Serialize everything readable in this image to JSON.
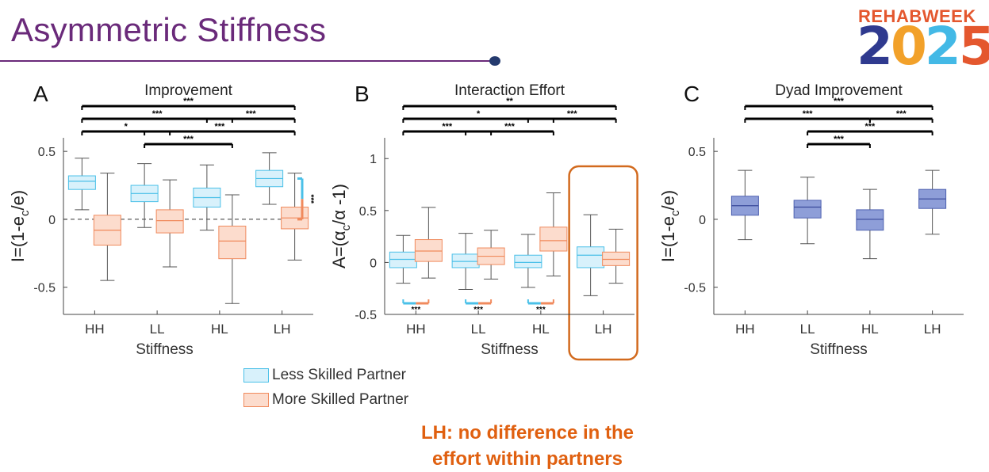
{
  "slide": {
    "title": "Asymmetric Stiffness"
  },
  "logo": {
    "top_text": "REHABWEEK",
    "year_digits": [
      "2",
      "0",
      "2",
      "5"
    ]
  },
  "legend": {
    "items": [
      {
        "label": "Less Skilled Partner",
        "color": "#4ac0e8",
        "fill": "#d8f1fb"
      },
      {
        "label": "More Skilled Partner",
        "color": "#f08a5d",
        "fill": "#fcdccd"
      }
    ]
  },
  "callout": {
    "line1": "LH: no difference in the",
    "line2": "effort within partners"
  },
  "chart_data": [
    {
      "type": "box",
      "panel_letter": "A",
      "title": "Improvement",
      "xlabel": "Stiffness",
      "ylabel": "I=(1-e_c/e)",
      "categories": [
        "HH",
        "LL",
        "HL",
        "LH"
      ],
      "ylim": [
        -0.7,
        0.6
      ],
      "yticks": [
        0.5,
        0,
        -0.5
      ],
      "ytick_labels": [
        "0.5",
        "0",
        "-0.5"
      ],
      "zero_line": true,
      "series": [
        {
          "name": "Less Skilled Partner",
          "boxes": [
            {
              "min": 0.07,
              "q1": 0.22,
              "median": 0.28,
              "q3": 0.32,
              "max": 0.45
            },
            {
              "min": -0.06,
              "q1": 0.13,
              "median": 0.19,
              "q3": 0.25,
              "max": 0.41
            },
            {
              "min": -0.08,
              "q1": 0.09,
              "median": 0.16,
              "q3": 0.23,
              "max": 0.4
            },
            {
              "min": 0.11,
              "q1": 0.24,
              "median": 0.3,
              "q3": 0.36,
              "max": 0.49
            }
          ]
        },
        {
          "name": "More Skilled Partner",
          "boxes": [
            {
              "min": -0.45,
              "q1": -0.19,
              "median": -0.08,
              "q3": 0.03,
              "max": 0.34
            },
            {
              "min": -0.35,
              "q1": -0.1,
              "median": -0.01,
              "q3": 0.07,
              "max": 0.29
            },
            {
              "min": -0.62,
              "q1": -0.29,
              "median": -0.16,
              "q3": -0.05,
              "max": 0.18
            },
            {
              "min": -0.3,
              "q1": -0.07,
              "median": 0.01,
              "q3": 0.09,
              "max": 0.34
            }
          ]
        }
      ],
      "significance": [
        {
          "from": 0,
          "to": 3,
          "label": "***",
          "level": 1
        },
        {
          "from": 0,
          "to": 2,
          "label": "***",
          "level": 2
        },
        {
          "from": 2,
          "to": 3,
          "label": "***",
          "level": 2
        },
        {
          "from": 0,
          "to": 1,
          "label": "*",
          "level": 3
        },
        {
          "from": 1,
          "to": 2,
          "label": "***",
          "level": 4
        },
        {
          "from": 1,
          "to": 3,
          "label": "***",
          "level": 3
        }
      ],
      "side_bracket": {
        "label": "***"
      }
    },
    {
      "type": "box",
      "panel_letter": "B",
      "title": "Interaction Effort",
      "xlabel": "Stiffness",
      "ylabel": "A=(α_c/α -1)",
      "categories": [
        "HH",
        "LL",
        "HL",
        "LH"
      ],
      "ylim": [
        -0.5,
        1.2
      ],
      "yticks": [
        1,
        0.5,
        0,
        -0.5
      ],
      "ytick_labels": [
        "1",
        "0.5",
        "0",
        "-0.5"
      ],
      "highlight_category": 3,
      "series": [
        {
          "name": "Less Skilled Partner",
          "boxes": [
            {
              "min": -0.2,
              "q1": -0.05,
              "median": 0.03,
              "q3": 0.1,
              "max": 0.26
            },
            {
              "min": -0.26,
              "q1": -0.05,
              "median": 0.01,
              "q3": 0.08,
              "max": 0.28
            },
            {
              "min": -0.24,
              "q1": -0.05,
              "median": 0.0,
              "q3": 0.07,
              "max": 0.27
            },
            {
              "min": -0.32,
              "q1": -0.05,
              "median": 0.07,
              "q3": 0.15,
              "max": 0.46
            }
          ]
        },
        {
          "name": "More Skilled Partner",
          "boxes": [
            {
              "min": -0.15,
              "q1": 0.01,
              "median": 0.11,
              "q3": 0.22,
              "max": 0.53
            },
            {
              "min": -0.16,
              "q1": -0.02,
              "median": 0.06,
              "q3": 0.14,
              "max": 0.31
            },
            {
              "min": -0.13,
              "q1": 0.11,
              "median": 0.21,
              "q3": 0.34,
              "max": 0.67
            },
            {
              "min": -0.2,
              "q1": -0.03,
              "median": 0.03,
              "q3": 0.1,
              "max": 0.32
            }
          ]
        }
      ],
      "significance": [
        {
          "from": 0,
          "to": 3,
          "label": "**",
          "level": 1
        },
        {
          "from": 0,
          "to": 2,
          "label": "*",
          "level": 2
        },
        {
          "from": 2,
          "to": 3,
          "label": "***",
          "level": 2
        },
        {
          "from": 0,
          "to": 1,
          "label": "***",
          "level": 3
        },
        {
          "from": 1,
          "to": 2,
          "label": "***",
          "level": 3
        }
      ],
      "within_brackets": [
        {
          "category": 0,
          "label": "***"
        },
        {
          "category": 1,
          "label": "***"
        },
        {
          "category": 2,
          "label": "***"
        }
      ]
    },
    {
      "type": "box",
      "panel_letter": "C",
      "title": "Dyad Improvement",
      "xlabel": "Stiffness",
      "ylabel": "I=(1-e_c/e)",
      "categories": [
        "HH",
        "LL",
        "HL",
        "LH"
      ],
      "ylim": [
        -0.7,
        0.6
      ],
      "yticks": [
        0.5,
        0,
        -0.5
      ],
      "ytick_labels": [
        "0.5",
        "0",
        "-0.5"
      ],
      "series": [
        {
          "name": "Dyad",
          "boxes": [
            {
              "min": -0.15,
              "q1": 0.03,
              "median": 0.1,
              "q3": 0.17,
              "max": 0.36
            },
            {
              "min": -0.18,
              "q1": 0.01,
              "median": 0.09,
              "q3": 0.14,
              "max": 0.31
            },
            {
              "min": -0.29,
              "q1": -0.08,
              "median": 0.0,
              "q3": 0.07,
              "max": 0.22
            },
            {
              "min": -0.11,
              "q1": 0.08,
              "median": 0.15,
              "q3": 0.22,
              "max": 0.36
            }
          ]
        }
      ],
      "significance": [
        {
          "from": 0,
          "to": 3,
          "label": "***",
          "level": 1
        },
        {
          "from": 0,
          "to": 2,
          "label": "***",
          "level": 2
        },
        {
          "from": 2,
          "to": 3,
          "label": "***",
          "level": 2
        },
        {
          "from": 1,
          "to": 3,
          "label": "***",
          "level": 3
        },
        {
          "from": 1,
          "to": 2,
          "label": "***",
          "level": 4
        }
      ]
    }
  ]
}
